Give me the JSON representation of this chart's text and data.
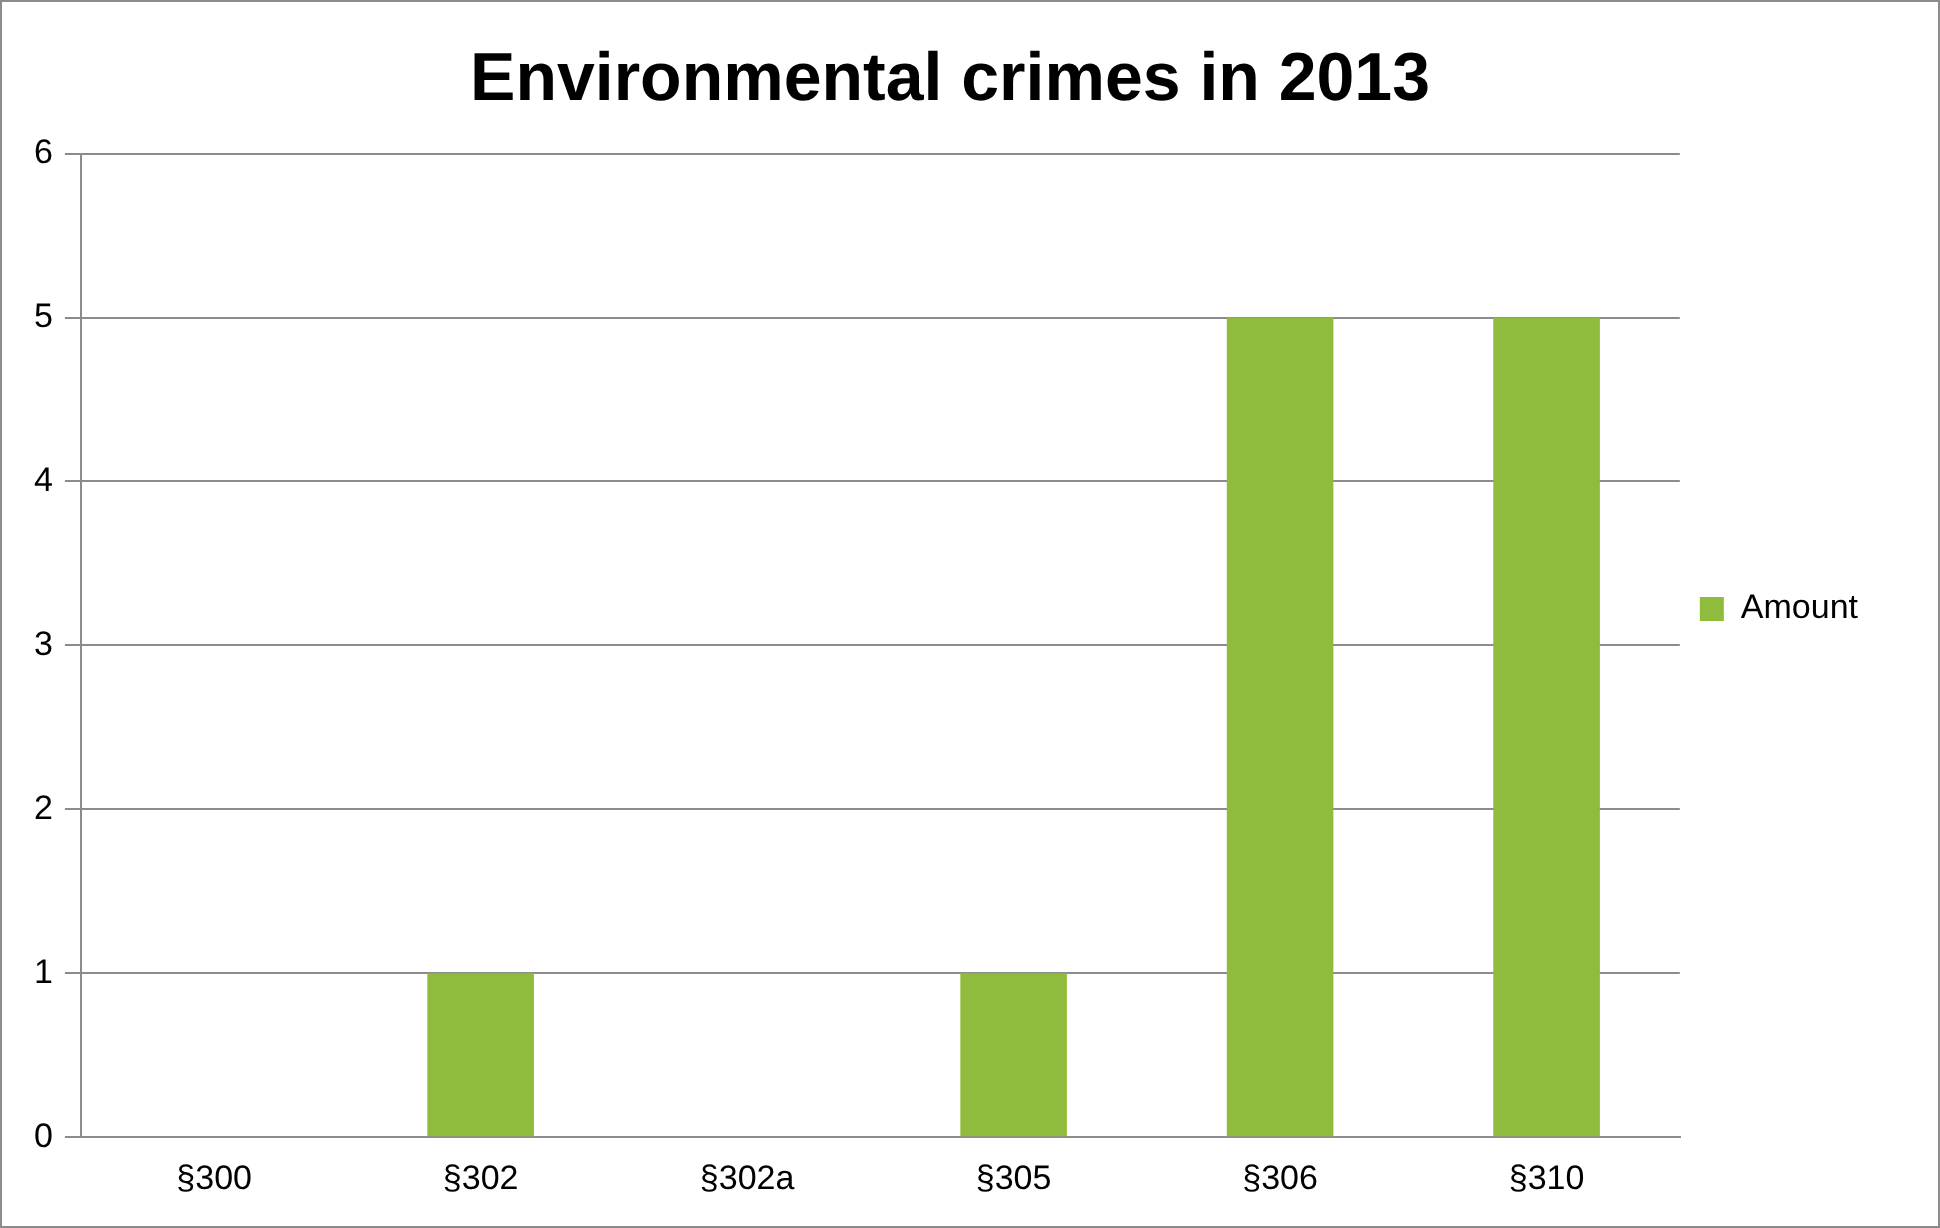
{
  "chart_data": {
    "type": "bar",
    "title": "Environmental crimes in 2013",
    "categories": [
      "§300",
      "§302",
      "§302a",
      "§305",
      "§306",
      "§310"
    ],
    "series": [
      {
        "name": "Amount",
        "color": "#8fbc3c",
        "values": [
          0,
          1,
          0,
          1,
          5,
          5
        ]
      }
    ],
    "ylim": [
      0,
      6
    ],
    "yticks": [
      0,
      1,
      2,
      3,
      4,
      5,
      6
    ],
    "grid": "y",
    "legend": "right"
  }
}
